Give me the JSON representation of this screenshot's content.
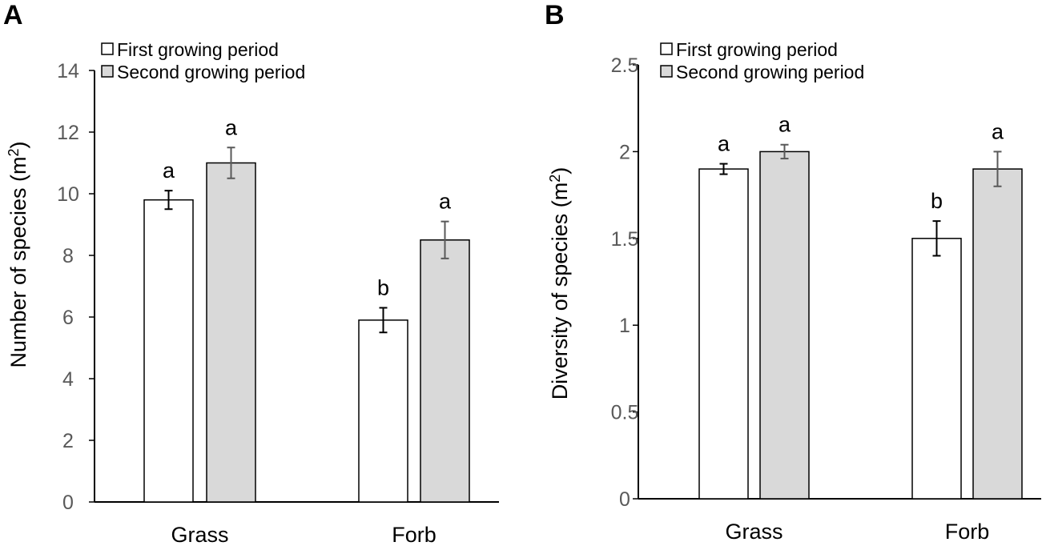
{
  "colors": {
    "first_fill": "#ffffff",
    "second_fill": "#d9d9d9",
    "bar_stroke": "#000000",
    "axis": "#000000",
    "error_first": "#000000",
    "error_second": "#595959"
  },
  "chart_data": [
    {
      "type": "bar",
      "panel": "A",
      "ylabel": "Number of species (m",
      "ylabel_sup": "2",
      "ylabel_close": ")",
      "ylim": [
        0,
        14
      ],
      "yticks": [
        "0",
        "2",
        "4",
        "6",
        "8",
        "10",
        "12",
        "14"
      ],
      "categories": [
        "Grass",
        "Forb"
      ],
      "legend_position": "top-left",
      "series": [
        {
          "name": "First growing period",
          "values": [
            9.8,
            5.9
          ],
          "errors": [
            0.3,
            0.4
          ],
          "letters": [
            "a",
            "b"
          ]
        },
        {
          "name": "Second growing period",
          "values": [
            11.0,
            8.5
          ],
          "errors": [
            0.5,
            0.6
          ],
          "letters": [
            "a",
            "a"
          ]
        }
      ]
    },
    {
      "type": "bar",
      "panel": "B",
      "ylabel": "Diversity of species (m",
      "ylabel_sup": "2",
      "ylabel_close": ")",
      "ylim": [
        0,
        2.5
      ],
      "yticks": [
        "0",
        "0.5",
        "1",
        "1.5",
        "2",
        "2.5"
      ],
      "categories": [
        "Grass",
        "Forb"
      ],
      "legend_position": "top-left",
      "series": [
        {
          "name": "First growing period",
          "values": [
            1.9,
            1.5
          ],
          "errors": [
            0.03,
            0.1
          ],
          "letters": [
            "a",
            "b"
          ]
        },
        {
          "name": "Second growing period",
          "values": [
            2.0,
            1.9
          ],
          "errors": [
            0.04,
            0.1
          ],
          "letters": [
            "a",
            "a"
          ]
        }
      ]
    }
  ]
}
